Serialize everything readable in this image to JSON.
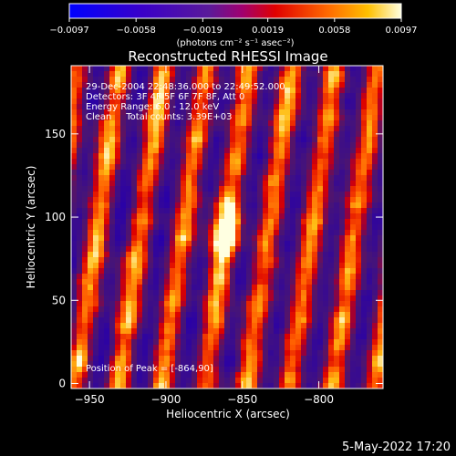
{
  "chart_data": {
    "type": "heatmap",
    "title": "Reconstructed RHESSI Image",
    "xlabel": "Heliocentric X (arcsec)",
    "ylabel": "Heliocentric Y (arcsec)",
    "xlim": [
      -962,
      -758
    ],
    "ylim": [
      -3,
      191
    ],
    "x_ticks": [
      -950,
      -900,
      -850,
      -800
    ],
    "x_tick_labels": [
      "−950",
      "−900",
      "−850",
      "−800"
    ],
    "y_ticks": [
      0,
      50,
      100,
      150
    ],
    "y_tick_labels": [
      "0",
      "50",
      "100",
      "150"
    ],
    "colorbar": {
      "range": [
        -0.0097,
        0.0097
      ],
      "ticks": [
        -0.0097,
        -0.0058,
        -0.0019,
        0.0019,
        0.0058,
        0.0097
      ],
      "tick_labels": [
        "−0.0097",
        "−0.0058",
        "−0.0019",
        "0.0019",
        "0.0058",
        "0.0097"
      ],
      "unit_label": "(photons cm⁻² s⁻¹ asec⁻²)",
      "colors": [
        "#0000ff",
        "#4b0082",
        "#8b008b",
        "#ff0000",
        "#ff8c00",
        "#ffffe0"
      ]
    },
    "annotations": [
      "29-Dec-2004 22:48:36.000 to 22:49:52.000",
      "Detectors: 3F 4F 5F 6F 7F 8F, Att 0",
      "Energy Range: 6.0 - 12.0 keV",
      "Clean     Total counts: 3.39E+03"
    ],
    "peak_label": "Position of Peak = [-864,90]",
    "peak": {
      "x": -864,
      "y": 90,
      "value": 0.0097
    }
  },
  "footer": {
    "timestamp": "5-May-2022 17:20"
  }
}
